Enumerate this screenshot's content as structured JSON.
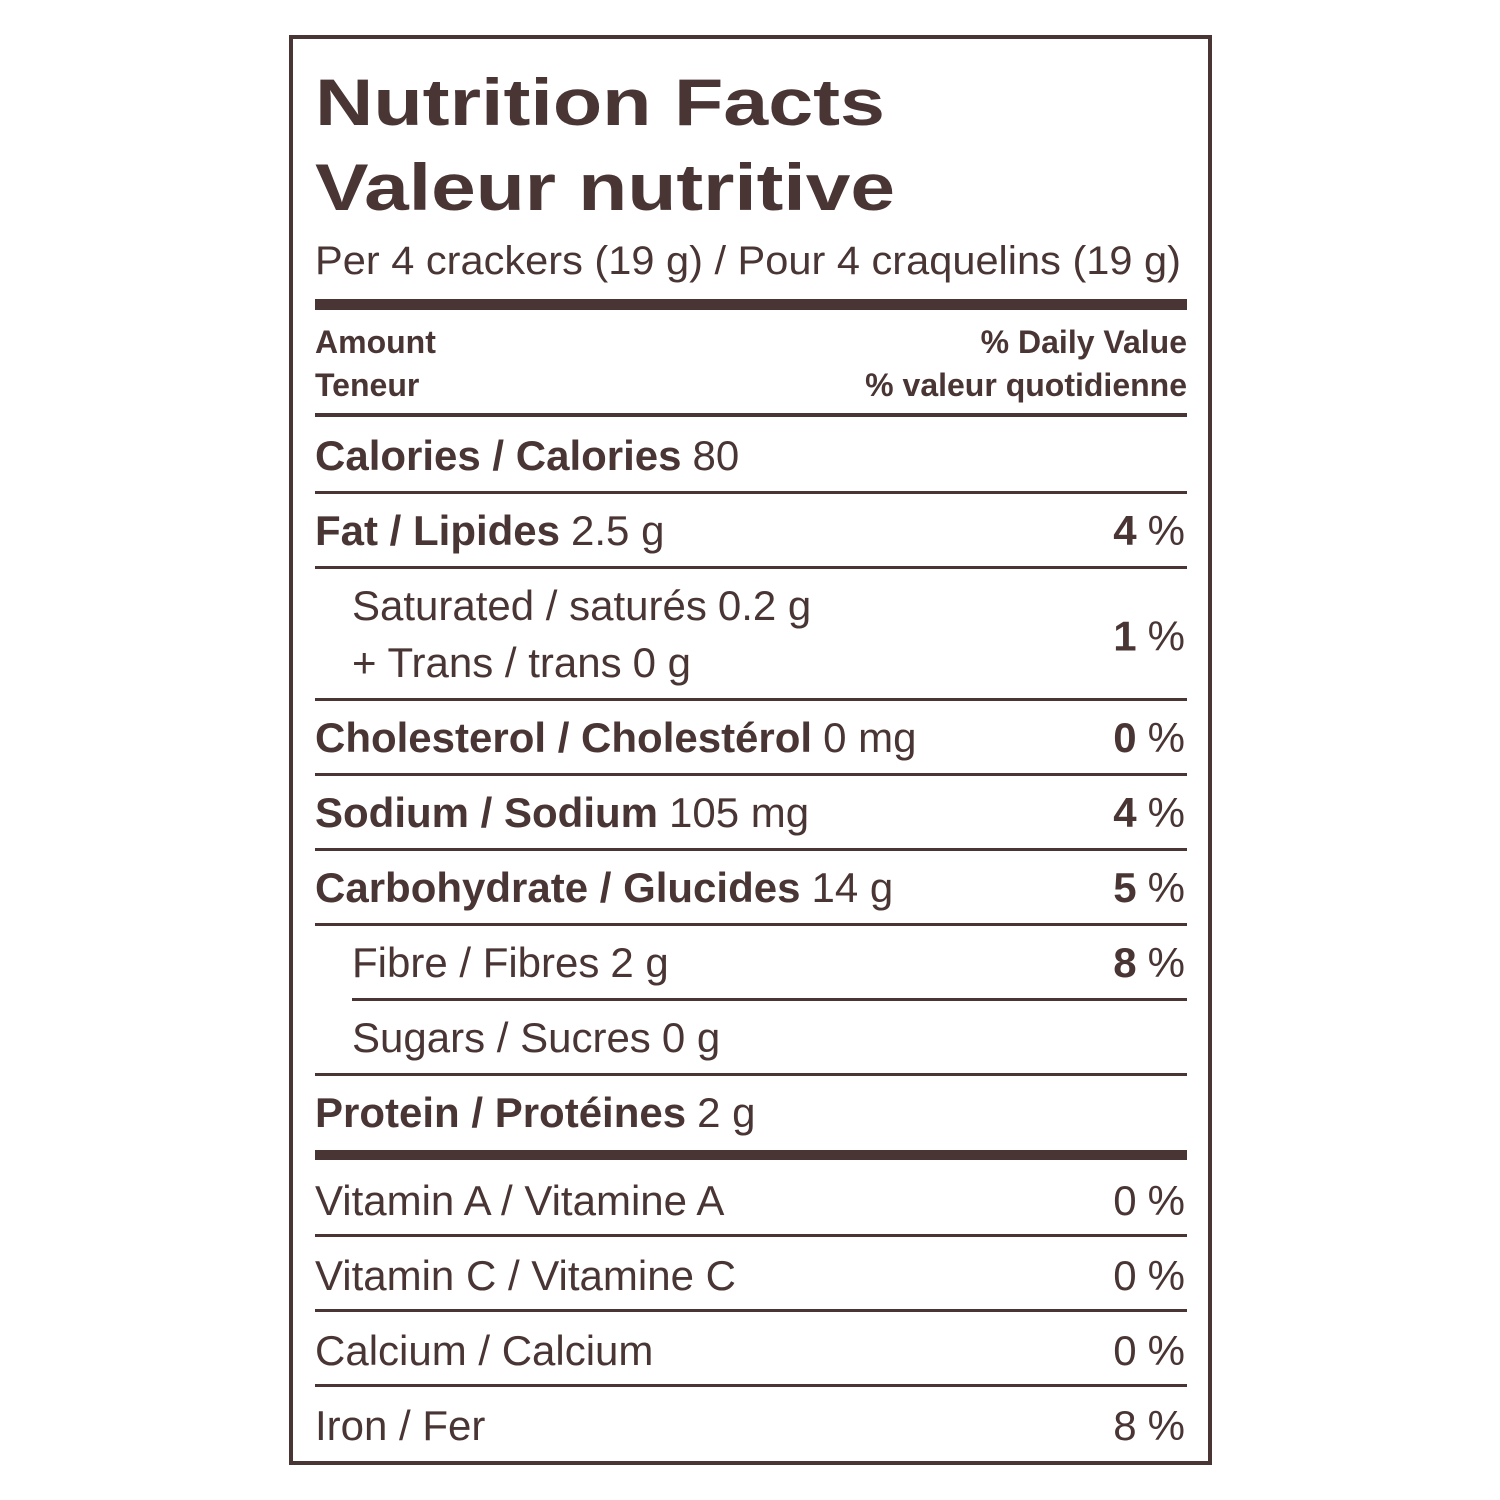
{
  "header": {
    "title": "Nutrition Facts",
    "title_fr": "Valeur nutritive",
    "serving": "Per 4 crackers (19 g) / Pour 4 craquelins (19 g)"
  },
  "columns": {
    "amount": "Amount",
    "amount_fr": "Teneur",
    "dv": "% Daily Value",
    "dv_fr": "% valeur quotidienne"
  },
  "nutrients": [
    {
      "name": "Calories / Calories",
      "amount": "80"
    },
    {
      "name": "Fat / Lipides",
      "amount": "2.5 g",
      "dv": "4",
      "dv_unit": "%",
      "sub": [
        {
          "lines": [
            {
              "name": "Saturated / saturés",
              "amount": "0.2 g"
            },
            {
              "name": "+ Trans / trans",
              "amount": "0 g"
            }
          ],
          "dv": "1",
          "dv_unit": "%"
        }
      ]
    },
    {
      "name": "Cholesterol / Cholestérol",
      "amount": "0 mg",
      "dv": "0",
      "dv_unit": "%"
    },
    {
      "name": "Sodium / Sodium",
      "amount": "105 mg",
      "dv": "4",
      "dv_unit": "%"
    },
    {
      "name": "Carbohydrate / Glucides",
      "amount": "14 g",
      "dv": "5",
      "dv_unit": "%",
      "sub": [
        {
          "lines": [
            {
              "name": "Fibre / Fibres",
              "amount": "2 g"
            }
          ],
          "dv": "8",
          "dv_unit": "%"
        },
        {
          "lines": [
            {
              "name": "Sugars / Sucres",
              "amount": "0 g"
            }
          ]
        }
      ]
    },
    {
      "name": "Protein / Protéines",
      "amount": "2 g"
    }
  ],
  "vitamins": [
    {
      "name": "Vitamin A / Vitamine A",
      "dv": "0",
      "dv_unit": "%"
    },
    {
      "name": "Vitamin C / Vitamine C",
      "dv": "0",
      "dv_unit": "%"
    },
    {
      "name": "Calcium / Calcium",
      "dv": "0",
      "dv_unit": "%"
    },
    {
      "name": "Iron / Fer",
      "dv": "8",
      "dv_unit": "%"
    }
  ]
}
